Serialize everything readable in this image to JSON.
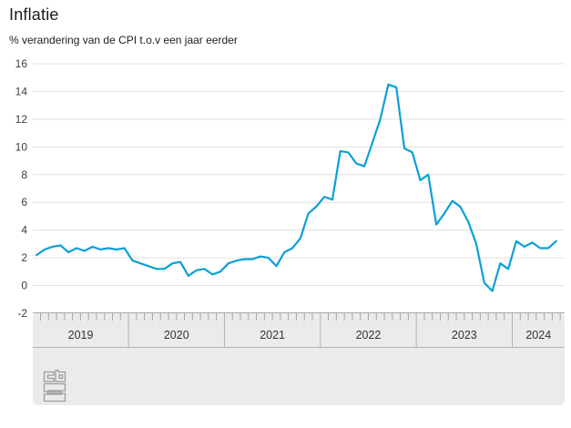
{
  "header": {
    "title": "Inflatie",
    "subtitle": "% verandering van de CPI t.o.v een jaar eerder"
  },
  "footer": {
    "logo_name": "cbs-logo"
  },
  "colors": {
    "line": "#0aa0d6",
    "grid": "#e0e0e0",
    "panel_bg": "#ebebeb",
    "panel_border": "#a8a8a8",
    "band_separator": "#b3b3b3",
    "minor_tick": "#a6a6a6",
    "logo_stroke": "#9b9b9b",
    "text": "#1c1c1c"
  },
  "chart_data": {
    "type": "line",
    "title": "Inflatie",
    "subtitle": "% verandering van de CPI t.o.v een jaar eerder",
    "unit": "%",
    "frequency": "monthly",
    "x_start": "2019-01",
    "x_end": "2024-06",
    "years": [
      "2019",
      "2020",
      "2021",
      "2022",
      "2023",
      "2024"
    ],
    "yticks": [
      16,
      14,
      12,
      10,
      8,
      6,
      4,
      2,
      0,
      -2
    ],
    "ylim": [
      -2,
      16
    ],
    "grid": "horizontal",
    "legend": "none",
    "series": [
      {
        "name": "Inflatie (CPI, % j-o-j)",
        "values": [
          2.2,
          2.6,
          2.8,
          2.9,
          2.4,
          2.7,
          2.5,
          2.8,
          2.6,
          2.7,
          2.6,
          2.7,
          1.8,
          1.6,
          1.4,
          1.2,
          1.2,
          1.6,
          1.7,
          0.7,
          1.1,
          1.2,
          0.8,
          1.0,
          1.6,
          1.8,
          1.9,
          1.9,
          2.1,
          2.0,
          1.4,
          2.4,
          2.7,
          3.4,
          5.2,
          5.7,
          6.4,
          6.2,
          9.7,
          9.6,
          8.8,
          8.6,
          10.3,
          12.0,
          14.5,
          14.3,
          9.9,
          9.6,
          7.6,
          8.0,
          4.4,
          5.2,
          6.1,
          5.7,
          4.6,
          3.0,
          0.2,
          -0.4,
          1.6,
          1.2,
          3.2,
          2.8,
          3.1,
          2.7,
          2.7,
          3.2
        ]
      }
    ]
  }
}
